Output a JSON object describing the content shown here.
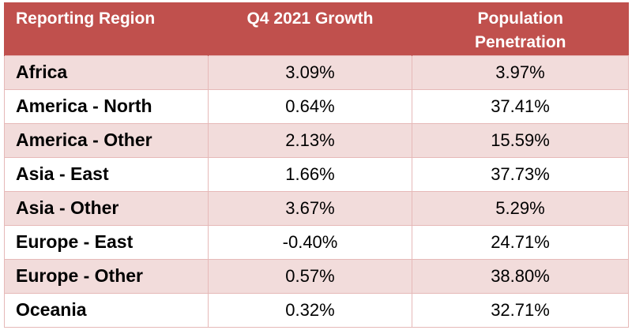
{
  "chart_data": {
    "type": "table",
    "columns": [
      "Reporting Region",
      "Q4 2021 Growth",
      "Population Penetration"
    ],
    "header_lines": {
      "col3_line1": "Population",
      "col3_line2": "Penetration"
    },
    "rows": [
      {
        "region": "Africa",
        "growth": "3.09%",
        "penetration": "3.97%"
      },
      {
        "region": "America - North",
        "growth": "0.64%",
        "penetration": "37.41%"
      },
      {
        "region": "America - Other",
        "growth": "2.13%",
        "penetration": "15.59%"
      },
      {
        "region": "Asia - East",
        "growth": "1.66%",
        "penetration": "37.73%"
      },
      {
        "region": "Asia - Other",
        "growth": "3.67%",
        "penetration": "5.29%"
      },
      {
        "region": "Europe - East",
        "growth": "-0.40%",
        "penetration": "24.71%"
      },
      {
        "region": "Europe - Other",
        "growth": "0.57%",
        "penetration": "38.80%"
      },
      {
        "region": "Oceania",
        "growth": "0.32%",
        "penetration": "32.71%"
      }
    ]
  },
  "colors": {
    "header_bg": "#c0504d",
    "header_text": "#ffffff",
    "band_row": "#f2dcdb",
    "plain_row": "#ffffff",
    "grid_line": "#e6b9b8"
  }
}
